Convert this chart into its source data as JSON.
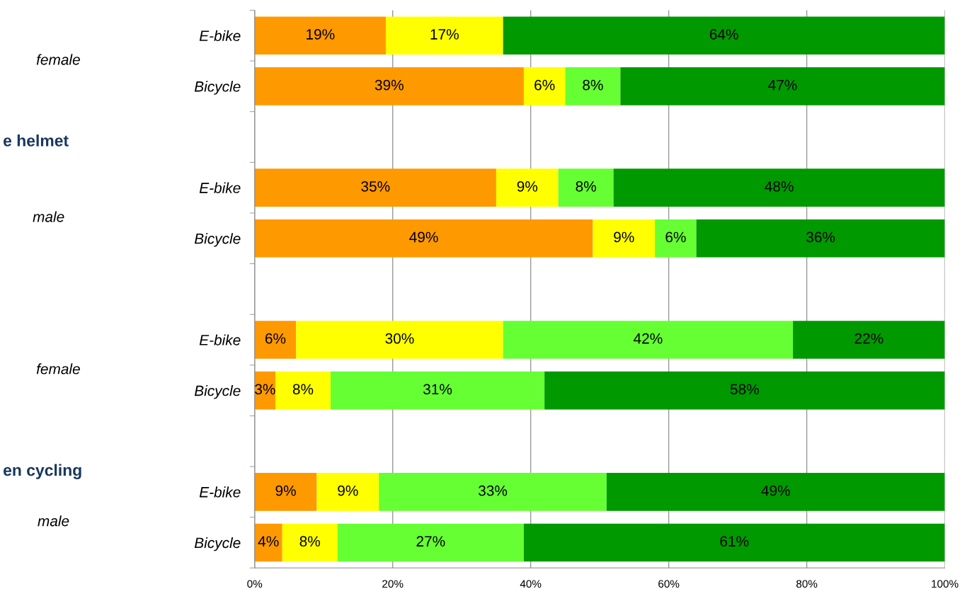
{
  "chart_data": {
    "type": "bar",
    "orientation": "horizontal",
    "stacked": true,
    "grid": "x",
    "categories": [
      "E-bike",
      "Bicycle",
      null,
      "E-bike",
      "Bicycle",
      null,
      "E-bike",
      "Bicycle",
      null,
      "E-bike",
      "Bicycle"
    ],
    "series": [
      {
        "color": "#ff9900",
        "values": [
          19,
          39,
          null,
          35,
          49,
          null,
          6,
          3,
          null,
          9,
          4
        ],
        "value_labels": [
          "19%",
          "39%",
          null,
          "35%",
          "49%",
          null,
          "6%",
          "3%",
          null,
          "9%",
          "4%"
        ]
      },
      {
        "color": "#ffff00",
        "values": [
          17,
          6,
          null,
          9,
          9,
          null,
          30,
          8,
          null,
          9,
          8
        ],
        "value_labels": [
          "17%",
          "6%",
          null,
          "9%",
          "9%",
          null,
          "30%",
          "8%",
          null,
          "9%",
          "8%"
        ]
      },
      {
        "color": "#66ff33",
        "values": [
          null,
          8,
          null,
          8,
          6,
          null,
          42,
          31,
          null,
          33,
          27
        ],
        "value_labels": [
          null,
          "8%",
          null,
          "8%",
          "6%",
          null,
          "42%",
          "31%",
          null,
          "33%",
          "27%"
        ]
      },
      {
        "color": "#009900",
        "values": [
          64,
          47,
          null,
          48,
          36,
          null,
          22,
          58,
          null,
          49,
          61
        ],
        "value_labels": [
          "64%",
          "47%",
          null,
          "48%",
          "36%",
          null,
          "22%",
          "58%",
          null,
          "49%",
          "61%"
        ]
      }
    ],
    "xlim": [
      0,
      100
    ],
    "xticks": [
      {
        "value": 0,
        "label": "0%"
      },
      {
        "value": 20,
        "label": "20%"
      },
      {
        "value": 40,
        "label": "40%"
      },
      {
        "value": 60,
        "label": "60%"
      },
      {
        "value": 80,
        "label": "80%"
      },
      {
        "value": 100,
        "label": "100%"
      }
    ],
    "annotations": [
      "female",
      "e helmet",
      "male",
      "female",
      "en cycling",
      "male"
    ]
  }
}
